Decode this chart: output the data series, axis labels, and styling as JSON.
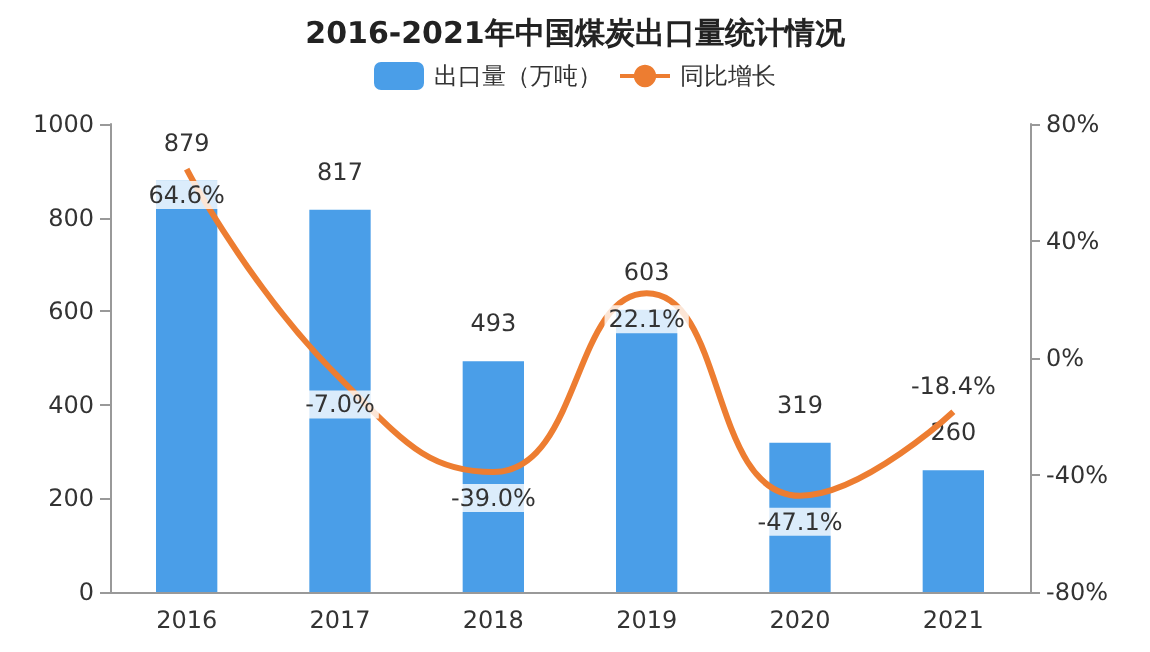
{
  "chart_data": {
    "type": "bar",
    "title": "2016-2021年中国煤炭出口量统计情况",
    "categories": [
      "2016",
      "2017",
      "2018",
      "2019",
      "2020",
      "2021"
    ],
    "series": [
      {
        "name": "出口量（万吨）",
        "color": "#4a9ee8",
        "values": [
          879,
          817,
          493,
          603,
          319,
          260
        ],
        "value_labels": [
          "879",
          "817",
          "493",
          "603",
          "319",
          "260"
        ]
      },
      {
        "name": "同比增长",
        "type": "line",
        "axis": "y2",
        "color": "#ed7d31",
        "marker": "none",
        "values": [
          64.6,
          -7.0,
          -39.0,
          22.1,
          -47.1,
          -18.4
        ],
        "value_labels": [
          "64.6%",
          "-7.0%",
          "-39.0%",
          "22.1%",
          "-47.1%",
          "-18.4%"
        ]
      }
    ],
    "ylim": [
      0,
      1000
    ],
    "yticks": [
      0,
      200,
      400,
      600,
      800,
      1000
    ],
    "y2lim": [
      -80,
      80
    ],
    "y2ticks": [
      {
        "value": -80,
        "label": "-80%"
      },
      {
        "value": -40,
        "label": "-40%"
      },
      {
        "value": 0,
        "label": "0%"
      },
      {
        "value": 40,
        "label": "40%"
      },
      {
        "value": 80,
        "label": "80%"
      }
    ],
    "legend": "top"
  }
}
